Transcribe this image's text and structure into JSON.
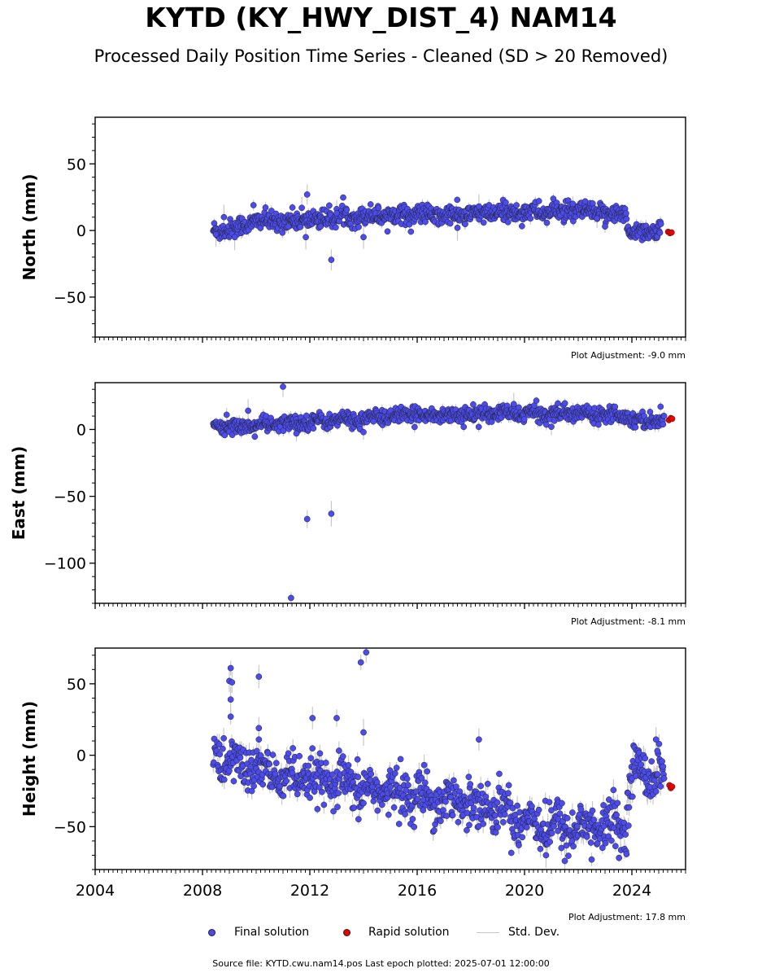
{
  "title": "KYTD (KY_HWY_DIST_4) NAM14",
  "subtitle": "Processed Daily Position Time Series - Cleaned (SD > 20 Removed)",
  "legend": {
    "final": "Final solution",
    "rapid": "Rapid solution",
    "std": "Std. Dev."
  },
  "footer": "Source file: KYTD.cwu.nam14.pos  Last epoch plotted: 2025-07-01 12:00:00",
  "colors": {
    "final": "#4b4bf0",
    "rapid": "#ee0000",
    "std_dev": "#c8c8c8",
    "edge": "#222222"
  },
  "chart_data": [
    {
      "type": "scatter",
      "ylabel": "North (mm)",
      "adjustment": "Plot Adjustment: -9.0 mm",
      "xlim": [
        2004.0,
        2026.0
      ],
      "ylim": [
        -80,
        85
      ],
      "yticks": [
        -50,
        0,
        50
      ],
      "xtick_labels_shown": false,
      "trend": [
        [
          2008.4,
          0
        ],
        [
          2009.0,
          1
        ],
        [
          2010.0,
          7
        ],
        [
          2011.0,
          7
        ],
        [
          2012.0,
          8
        ],
        [
          2013.0,
          10
        ],
        [
          2014.0,
          11
        ],
        [
          2015.0,
          12
        ],
        [
          2016.0,
          12
        ],
        [
          2017.0,
          11
        ],
        [
          2018.0,
          12
        ],
        [
          2019.0,
          13
        ],
        [
          2020.0,
          14
        ],
        [
          2021.0,
          14
        ],
        [
          2022.0,
          14
        ],
        [
          2023.0,
          13
        ],
        [
          2023.8,
          12
        ],
        [
          2023.85,
          -1
        ],
        [
          2025.1,
          0
        ]
      ],
      "spread": 3.5,
      "outliers": [
        [
          2008.5,
          -3
        ],
        [
          2008.8,
          10
        ],
        [
          2009.2,
          -5
        ],
        [
          2009.9,
          19
        ],
        [
          2011.2,
          3
        ],
        [
          2011.7,
          17
        ],
        [
          2011.9,
          27
        ],
        [
          2011.85,
          -5
        ],
        [
          2012.4,
          3
        ],
        [
          2012.8,
          -22
        ],
        [
          2013.0,
          13
        ],
        [
          2014.0,
          -5
        ],
        [
          2017.5,
          2
        ],
        [
          2018.3,
          18
        ],
        [
          2019.3,
          21
        ],
        [
          2021.8,
          20
        ],
        [
          2022.7,
          9
        ],
        [
          2023.0,
          3
        ]
      ],
      "rapid": [
        [
          2025.35,
          -1
        ],
        [
          2025.42,
          -2
        ],
        [
          2025.48,
          -1.5
        ]
      ]
    },
    {
      "type": "scatter",
      "ylabel": "East (mm)",
      "adjustment": "Plot Adjustment: -8.1 mm",
      "xlim": [
        2004.0,
        2026.0
      ],
      "ylim": [
        -130,
        35
      ],
      "yticks": [
        -100,
        -50,
        0
      ],
      "xtick_labels_shown": false,
      "trend": [
        [
          2008.4,
          2
        ],
        [
          2009.0,
          2
        ],
        [
          2010.0,
          3
        ],
        [
          2011.0,
          4
        ],
        [
          2012.0,
          6
        ],
        [
          2013.0,
          7
        ],
        [
          2014.0,
          8
        ],
        [
          2015.0,
          10
        ],
        [
          2016.0,
          11
        ],
        [
          2017.0,
          11
        ],
        [
          2018.0,
          11
        ],
        [
          2019.0,
          12
        ],
        [
          2020.0,
          12
        ],
        [
          2021.0,
          12
        ],
        [
          2022.0,
          12
        ],
        [
          2023.0,
          12
        ],
        [
          2023.85,
          11
        ],
        [
          2023.9,
          7
        ],
        [
          2025.2,
          7
        ]
      ],
      "spread": 2.8,
      "outliers": [
        [
          2008.9,
          11
        ],
        [
          2009.7,
          14
        ],
        [
          2011.0,
          32
        ],
        [
          2011.3,
          -126
        ],
        [
          2011.9,
          -67
        ],
        [
          2012.8,
          -63
        ],
        [
          2011.5,
          -3
        ],
        [
          2014.0,
          -2
        ],
        [
          2019.6,
          19
        ],
        [
          2021.0,
          2
        ]
      ],
      "rapid": [
        [
          2025.38,
          7
        ],
        [
          2025.45,
          8.5
        ],
        [
          2025.5,
          8
        ]
      ]
    },
    {
      "type": "scatter",
      "ylabel": "Height (mm)",
      "adjustment": "Plot Adjustment: 17.8 mm",
      "xlim": [
        2004.0,
        2026.0
      ],
      "ylim": [
        -80,
        75
      ],
      "yticks": [
        -50,
        0,
        50
      ],
      "xticks": [
        "2004",
        "2008",
        "2012",
        "2016",
        "2020",
        "2024"
      ],
      "xtick_values": [
        2004,
        2008,
        2012,
        2016,
        2020,
        2024
      ],
      "trend": [
        [
          2008.4,
          0
        ],
        [
          2009.0,
          -5
        ],
        [
          2010.0,
          -10
        ],
        [
          2011.0,
          -15
        ],
        [
          2012.0,
          -18
        ],
        [
          2013.0,
          -20
        ],
        [
          2014.0,
          -24
        ],
        [
          2015.0,
          -25
        ],
        [
          2016.0,
          -28
        ],
        [
          2017.0,
          -31
        ],
        [
          2018.0,
          -33
        ],
        [
          2019.0,
          -37
        ],
        [
          2020.0,
          -45
        ],
        [
          2021.0,
          -50
        ],
        [
          2022.0,
          -50
        ],
        [
          2023.0,
          -50
        ],
        [
          2023.8,
          -50
        ],
        [
          2023.9,
          -12
        ],
        [
          2025.2,
          -12
        ]
      ],
      "spread": 8,
      "outliers": [
        [
          2009.0,
          52
        ],
        [
          2009.05,
          61
        ],
        [
          2009.1,
          51
        ],
        [
          2009.05,
          39
        ],
        [
          2009.05,
          27
        ],
        [
          2010.1,
          55
        ],
        [
          2010.1,
          19
        ],
        [
          2010.1,
          11
        ],
        [
          2012.1,
          26
        ],
        [
          2013.9,
          65
        ],
        [
          2014.0,
          16
        ],
        [
          2014.1,
          72
        ],
        [
          2018.3,
          11
        ],
        [
          2013.0,
          26
        ],
        [
          2020.8,
          -70
        ],
        [
          2021.5,
          -74
        ],
        [
          2022.5,
          -73
        ],
        [
          2024.9,
          11
        ],
        [
          2024.95,
          3
        ]
      ],
      "rapid": [
        [
          2025.4,
          -21
        ],
        [
          2025.45,
          -23
        ],
        [
          2025.5,
          -22
        ]
      ]
    }
  ]
}
